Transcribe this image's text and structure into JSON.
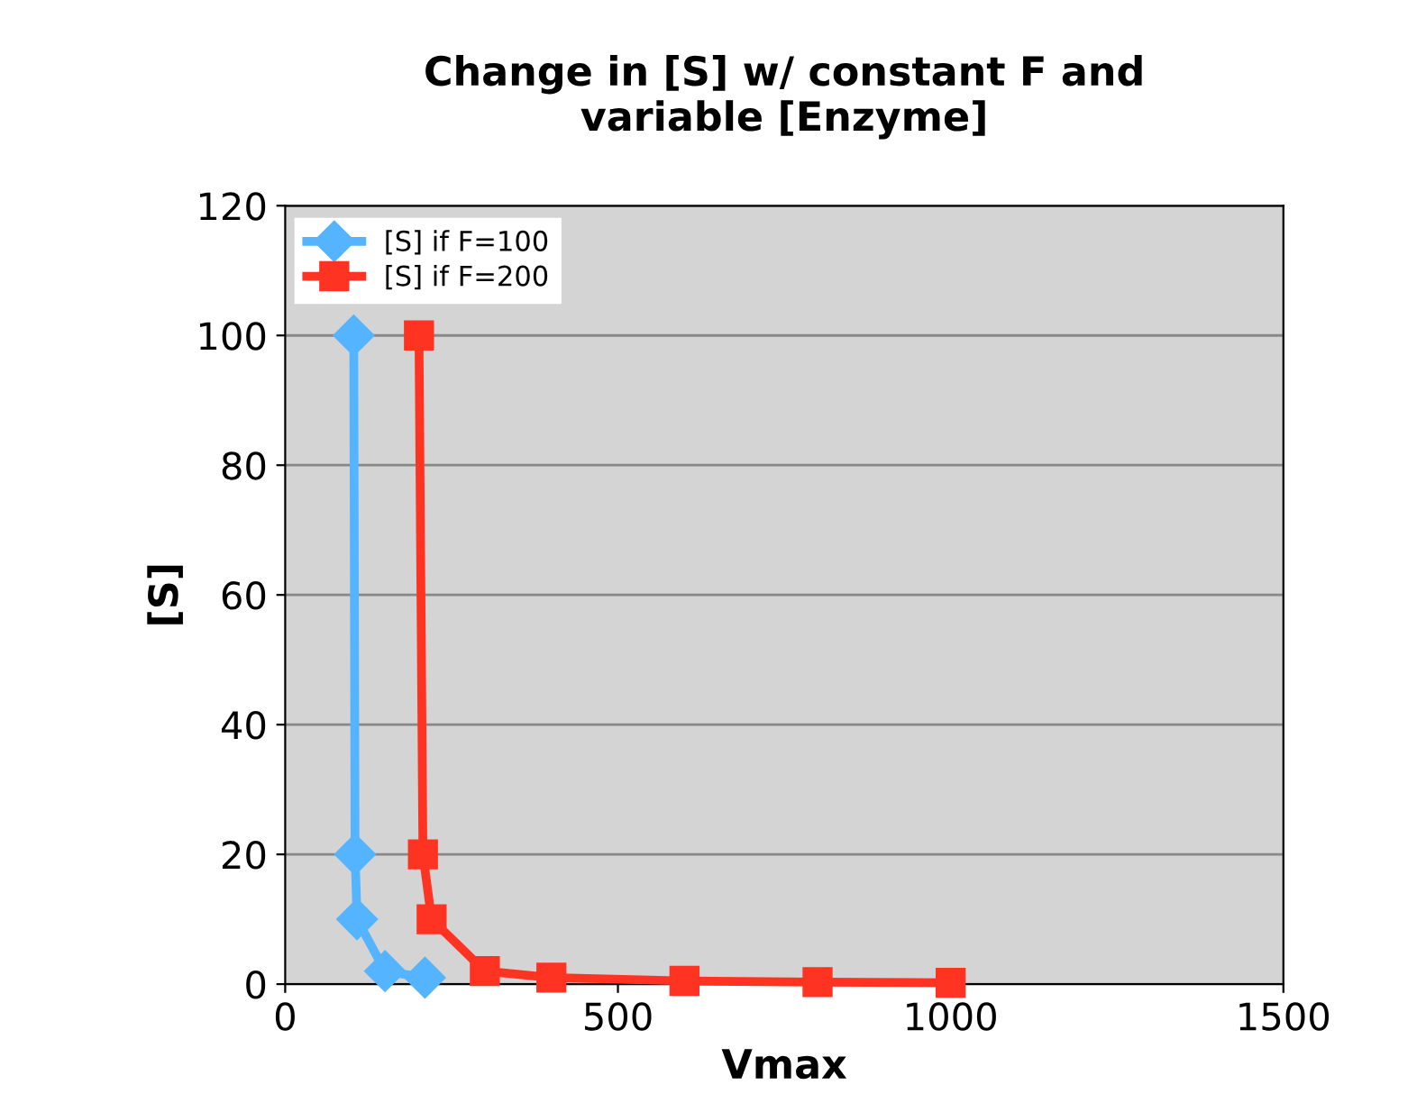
{
  "chart_data": {
    "type": "line",
    "title": "Change in [S] w/ constant F and\nvariable [Enzyme]",
    "xlabel": "Vmax",
    "ylabel": "[S]",
    "xlim": [
      0,
      1500
    ],
    "xticks": [
      0,
      500,
      1000,
      1500
    ],
    "ylim": [
      0,
      120
    ],
    "yticks": [
      0,
      20,
      40,
      60,
      80,
      100,
      120
    ],
    "grid": "y",
    "legend": "top left",
    "series": [
      {
        "name": "[S] if F=100",
        "color": "#55b4ff",
        "marker": "diamond",
        "x": [
          103,
          105,
          108,
          150,
          210
        ],
        "values": [
          100,
          20,
          10,
          2,
          1
        ]
      },
      {
        "name": "[S] if F=200",
        "color": "#ff3322",
        "marker": "square",
        "x": [
          201,
          207,
          220,
          300,
          400,
          600,
          800,
          1000
        ],
        "values": [
          100,
          20,
          10,
          2,
          1,
          0.5,
          0.3,
          0.2
        ]
      }
    ]
  }
}
